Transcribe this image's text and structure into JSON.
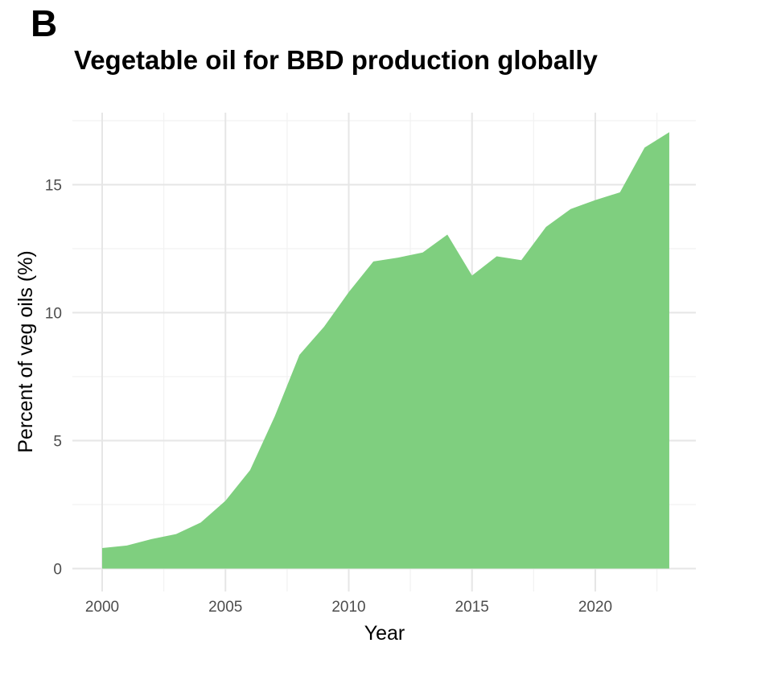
{
  "panel_label": "B",
  "chart_data": {
    "type": "area",
    "title": "Vegetable oil for BBD production globally",
    "xlabel": "Year",
    "ylabel": "Percent of veg oils (%)",
    "xlim": [
      1999,
      2023.3
    ],
    "ylim": [
      0,
      17.8
    ],
    "x_ticks": [
      2000,
      2005,
      2010,
      2015,
      2020
    ],
    "y_ticks": [
      0,
      5,
      10,
      15
    ],
    "grid": true,
    "legend": "none",
    "fill_color": "#7fcf7f",
    "x": [
      2000,
      2001,
      2002,
      2003,
      2004,
      2005,
      2006,
      2007,
      2008,
      2009,
      2010,
      2011,
      2012,
      2013,
      2014,
      2015,
      2016,
      2017,
      2018,
      2019,
      2020,
      2021,
      2022,
      2023
    ],
    "values": [
      0.8,
      0.9,
      1.15,
      1.35,
      1.8,
      2.65,
      3.85,
      5.95,
      8.35,
      9.45,
      10.8,
      12.0,
      12.15,
      12.35,
      13.05,
      11.45,
      12.2,
      12.05,
      13.35,
      14.05,
      14.4,
      14.7,
      16.45,
      17.05
    ]
  }
}
